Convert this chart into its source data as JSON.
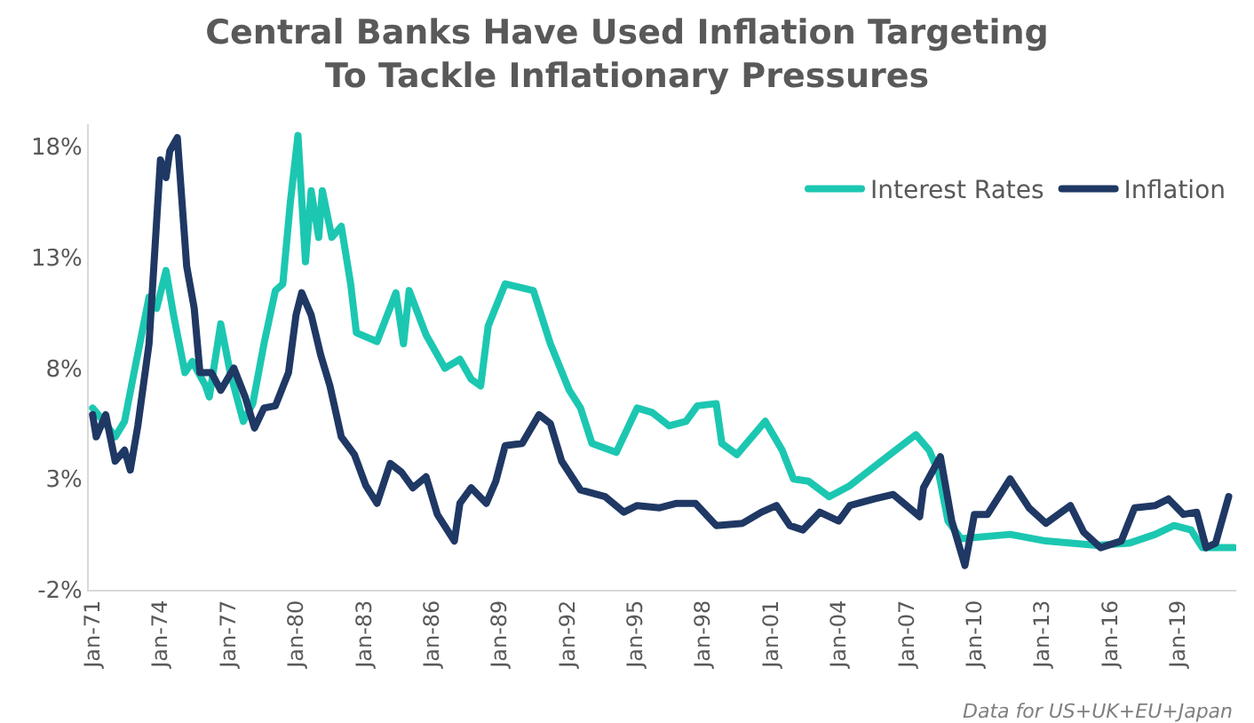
{
  "chart_data": {
    "type": "line",
    "title": "Central Banks Have Used Inflation Targeting To Tackle Inflationary Pressures",
    "series": [
      {
        "name": "Interest Rates",
        "color": "#1cc7b1",
        "x": [
          "1971-01",
          "1971-07",
          "1972-01",
          "1972-06",
          "1972-11",
          "1973-07",
          "1973-11",
          "1974-04",
          "1974-08",
          "1975-02",
          "1975-06",
          "1976-01",
          "1976-03",
          "1976-09",
          "1977-02",
          "1977-09",
          "1978-02",
          "1978-08",
          "1979-02",
          "1979-06",
          "1979-10",
          "1980-02",
          "1980-06",
          "1980-09",
          "1981-01",
          "1981-03",
          "1981-08",
          "1982-01",
          "1982-06",
          "1982-09",
          "1983-08",
          "1984-06",
          "1984-10",
          "1985-01",
          "1985-10",
          "1986-08",
          "1987-04",
          "1987-10",
          "1988-03",
          "1988-07",
          "1989-04",
          "1990-07",
          "1991-04",
          "1992-02",
          "1992-08",
          "1993-02",
          "1994-03",
          "1995-02",
          "1995-10",
          "1996-07",
          "1997-04",
          "1997-10",
          "1998-08",
          "1998-11",
          "1999-07",
          "2000-10",
          "2001-07",
          "2002-01",
          "2002-09",
          "2003-08",
          "2004-07",
          "2005-10",
          "2007-06",
          "2008-01",
          "2008-06",
          "2008-11",
          "2009-06",
          "2011-08",
          "2013-03",
          "2015-06",
          "2016-11",
          "2018-01",
          "2018-11",
          "2019-08",
          "2020-02",
          "2021-07"
        ],
        "values": [
          6.2,
          5.6,
          4.9,
          5.6,
          7.8,
          11.2,
          10.7,
          12.4,
          10.4,
          7.8,
          8.3,
          7.2,
          6.7,
          10.0,
          7.8,
          5.6,
          6.4,
          9.1,
          11.5,
          11.8,
          15.5,
          18.5,
          12.8,
          16.0,
          13.9,
          16.0,
          13.9,
          14.4,
          11.8,
          9.6,
          9.2,
          11.4,
          9.1,
          11.5,
          9.5,
          8.0,
          8.4,
          7.5,
          7.2,
          9.9,
          11.8,
          11.5,
          9.1,
          7.0,
          6.2,
          4.6,
          4.2,
          6.2,
          6.0,
          5.4,
          5.6,
          6.3,
          6.4,
          4.6,
          4.1,
          5.6,
          4.3,
          3.0,
          2.9,
          2.2,
          2.7,
          3.7,
          5.0,
          4.3,
          3.3,
          1.1,
          0.3,
          0.5,
          0.2,
          0.0,
          0.1,
          0.5,
          0.9,
          0.7,
          -0.1,
          -0.1
        ]
      },
      {
        "name": "Inflation",
        "color": "#1f3864",
        "x": [
          "1971-01",
          "1971-03",
          "1971-08",
          "1972-01",
          "1972-06",
          "1972-09",
          "1973-01",
          "1973-07",
          "1974-01",
          "1974-04",
          "1974-06",
          "1974-10",
          "1975-03",
          "1975-07",
          "1975-10",
          "1976-04",
          "1976-09",
          "1977-04",
          "1977-10",
          "1978-03",
          "1978-08",
          "1979-02",
          "1979-09",
          "1980-01",
          "1980-04",
          "1980-09",
          "1981-02",
          "1981-07",
          "1982-01",
          "1982-08",
          "1983-02",
          "1983-08",
          "1984-03",
          "1984-09",
          "1985-03",
          "1985-10",
          "1986-04",
          "1987-01",
          "1987-04",
          "1987-10",
          "1988-06",
          "1988-11",
          "1989-04",
          "1990-01",
          "1990-10",
          "1991-04",
          "1991-10",
          "1992-08",
          "1993-09",
          "1994-07",
          "1995-02",
          "1996-02",
          "1996-11",
          "1997-09",
          "1998-08",
          "1999-10",
          "2000-08",
          "2001-04",
          "2001-11",
          "2002-06",
          "2003-03",
          "2004-01",
          "2004-07",
          "2005-08",
          "2006-06",
          "2007-08",
          "2007-10",
          "2008-07",
          "2009-01",
          "2009-08",
          "2010-01",
          "2010-08",
          "2011-08",
          "2012-06",
          "2013-03",
          "2014-04",
          "2014-11",
          "2015-08",
          "2016-07",
          "2017-02",
          "2018-01",
          "2018-08",
          "2019-04",
          "2019-11",
          "2020-04",
          "2020-09",
          "2021-04"
        ],
        "values": [
          5.9,
          4.9,
          5.9,
          3.8,
          4.3,
          3.4,
          5.4,
          9.1,
          17.4,
          16.6,
          17.8,
          18.4,
          12.6,
          10.7,
          7.8,
          7.8,
          7.0,
          8.0,
          6.7,
          5.3,
          6.2,
          6.3,
          7.8,
          10.4,
          11.4,
          10.4,
          8.6,
          7.2,
          4.9,
          4.1,
          2.7,
          1.9,
          3.7,
          3.3,
          2.6,
          3.1,
          1.4,
          0.2,
          1.9,
          2.6,
          1.9,
          2.9,
          4.5,
          4.6,
          5.9,
          5.5,
          3.8,
          2.5,
          2.2,
          1.5,
          1.8,
          1.7,
          1.9,
          1.9,
          0.9,
          1.0,
          1.5,
          1.8,
          0.9,
          0.7,
          1.5,
          1.1,
          1.8,
          2.1,
          2.3,
          1.3,
          2.6,
          4.0,
          1.1,
          -0.9,
          1.4,
          1.4,
          3.0,
          1.7,
          1.0,
          1.8,
          0.6,
          -0.1,
          0.2,
          1.7,
          1.8,
          2.1,
          1.4,
          1.5,
          -0.1,
          0.1,
          2.2
        ]
      }
    ],
    "xticks": [
      {
        "value": "1971-01",
        "label": "Jan-71"
      },
      {
        "value": "1974-01",
        "label": "Jan-74"
      },
      {
        "value": "1977-01",
        "label": "Jan-77"
      },
      {
        "value": "1980-01",
        "label": "Jan-80"
      },
      {
        "value": "1983-01",
        "label": "Jan-83"
      },
      {
        "value": "1986-01",
        "label": "Jan-86"
      },
      {
        "value": "1989-01",
        "label": "Jan-89"
      },
      {
        "value": "1992-01",
        "label": "Jan-92"
      },
      {
        "value": "1995-01",
        "label": "Jan-95"
      },
      {
        "value": "1998-01",
        "label": "Jan-98"
      },
      {
        "value": "2001-01",
        "label": "Jan-01"
      },
      {
        "value": "2004-01",
        "label": "Jan-04"
      },
      {
        "value": "2007-01",
        "label": "Jan-07"
      },
      {
        "value": "2010-01",
        "label": "Jan-10"
      },
      {
        "value": "2013-01",
        "label": "Jan-13"
      },
      {
        "value": "2016-01",
        "label": "Jan-16"
      },
      {
        "value": "2019-01",
        "label": "Jan-19"
      }
    ],
    "xlim": [
      "1970-11",
      "2021-08"
    ],
    "ylim": [
      -2,
      19
    ],
    "yticks": [
      {
        "value": -2,
        "label": "-2%"
      },
      {
        "value": 3,
        "label": "3%"
      },
      {
        "value": 8,
        "label": "8%"
      },
      {
        "value": 13,
        "label": "13%"
      },
      {
        "value": 18,
        "label": "18%"
      }
    ],
    "legend": "top right",
    "marker": "none",
    "line_style": "solid",
    "annotations": [
      "Data for US+UK+EU+Japan"
    ]
  }
}
